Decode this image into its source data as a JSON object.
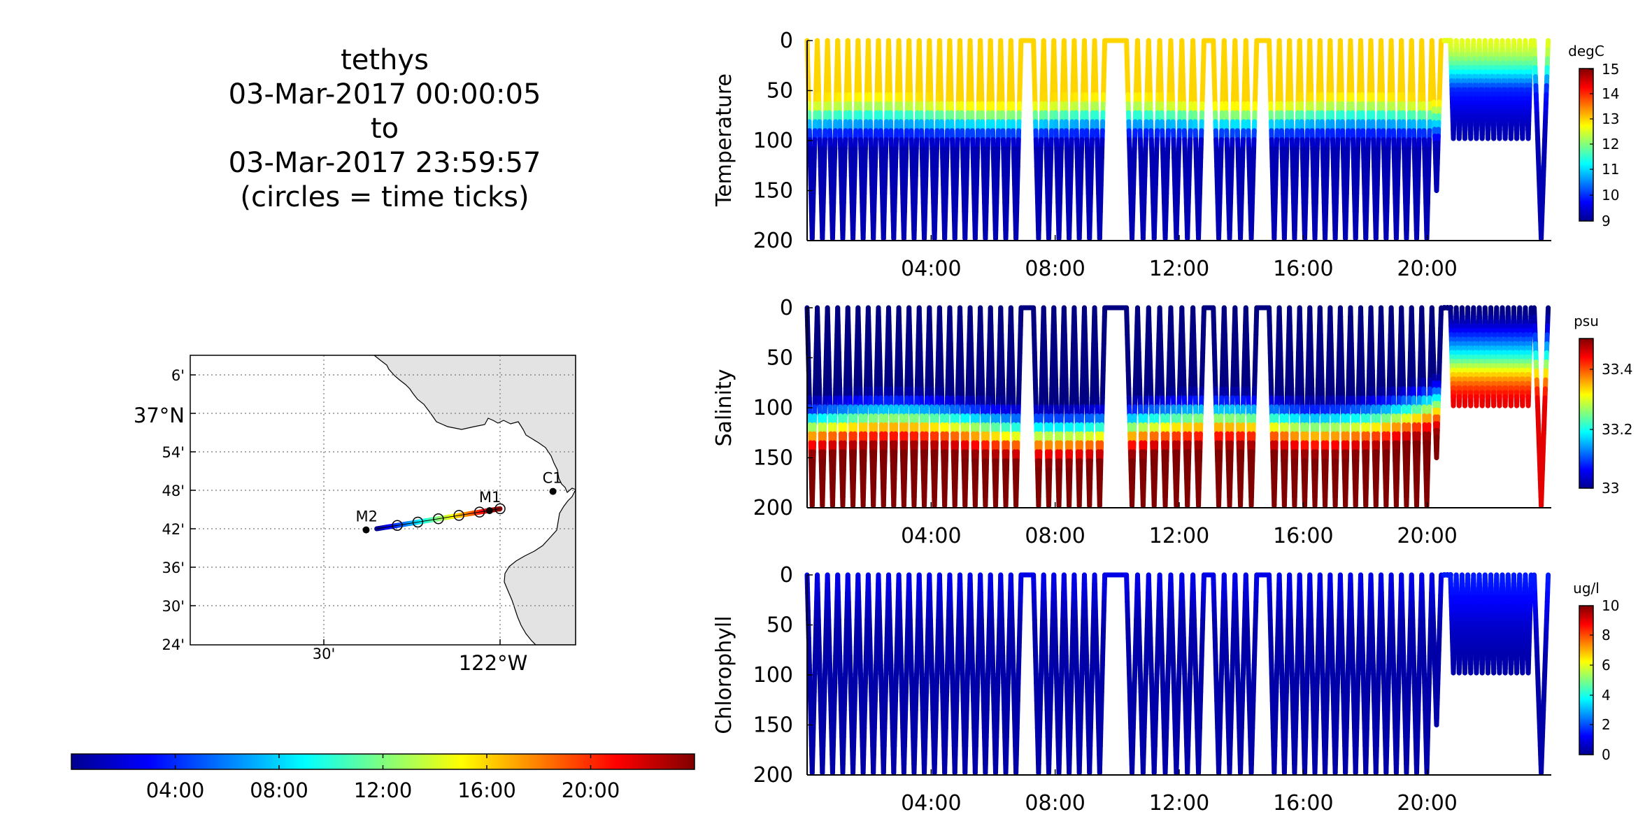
{
  "title": {
    "line1": "tethys",
    "line2": "03-Mar-2017 00:00:05",
    "line3": "to",
    "line4": "03-Mar-2017 23:59:57",
    "line5": "(circles = time ticks)"
  },
  "map": {
    "lat_labels": [
      "6'",
      "37°N",
      "54'",
      "48'",
      "42'",
      "36'",
      "30'",
      "24'"
    ],
    "lon_labels": [
      "30'",
      "122°W"
    ],
    "stations": [
      {
        "name": "M2",
        "lon": -122.38,
        "lat": 36.697
      },
      {
        "name": "M1",
        "lon": -122.03,
        "lat": 36.747
      },
      {
        "name": "C1",
        "lon": -121.85,
        "lat": 36.797
      }
    ],
    "track": {
      "start": [
        -122.35,
        36.7
      ],
      "end": [
        -122.0,
        36.752
      ]
    },
    "time_ticks_hours": [
      4,
      8,
      12,
      16,
      20,
      24
    ]
  },
  "time_colorbar": {
    "ticks": [
      "04:00",
      "08:00",
      "12:00",
      "16:00",
      "20:00"
    ]
  },
  "chart_data": [
    {
      "type": "scatter",
      "name": "temperature-section",
      "ylabel": "Temperature",
      "x_ticks": [
        "04:00",
        "08:00",
        "12:00",
        "16:00",
        "20:00"
      ],
      "y_ticks": [
        "0",
        "50",
        "100",
        "150",
        "200"
      ],
      "xlim_hours": [
        0,
        24
      ],
      "ylim": [
        200,
        0
      ],
      "colorbar": {
        "unit": "degC",
        "ticks": [
          "15",
          "14",
          "13",
          "12",
          "11",
          "10",
          "9"
        ],
        "range": [
          9,
          15
        ]
      },
      "profile": {
        "mixed_layer_value": 13.0,
        "deep_value": 9.3,
        "gradient_top_m": 55,
        "gradient_bottom_m": 110
      },
      "late_profile": {
        "mixed_layer_value": 12.6,
        "mid_value": 10.0,
        "bottom_value": 9.3
      }
    },
    {
      "type": "scatter",
      "name": "salinity-section",
      "ylabel": "Salinity",
      "x_ticks": [
        "04:00",
        "08:00",
        "12:00",
        "16:00",
        "20:00"
      ],
      "y_ticks": [
        "0",
        "50",
        "100",
        "150",
        "200"
      ],
      "xlim_hours": [
        0,
        24
      ],
      "ylim": [
        200,
        0
      ],
      "colorbar": {
        "unit": "psu",
        "ticks": [
          "33.4",
          "33.2",
          "33"
        ],
        "range": [
          33.0,
          33.5
        ]
      },
      "profile": {
        "surface_value": 33.0,
        "deep_value": 33.5,
        "halocline_m": 125
      },
      "late_profile": {
        "surface_value": 33.0,
        "mid_value": 33.2,
        "bottom_value": 33.45
      }
    },
    {
      "type": "scatter",
      "name": "chlorophyll-section",
      "ylabel": "Chlorophyll",
      "x_ticks": [
        "04:00",
        "08:00",
        "12:00",
        "16:00",
        "20:00"
      ],
      "y_ticks": [
        "0",
        "50",
        "100",
        "150",
        "200"
      ],
      "xlim_hours": [
        0,
        24
      ],
      "ylim": [
        200,
        0
      ],
      "colorbar": {
        "unit": "ug/l",
        "ticks": [
          "10",
          "8",
          "6",
          "4",
          "2",
          "0"
        ],
        "range": [
          0,
          10
        ]
      },
      "profile": {
        "surface_value": 1.0,
        "deep_value": 0.4
      },
      "late_profile": {
        "surface_value": 1.5,
        "mid_value": 0.8,
        "bottom_value": 0.4
      }
    }
  ],
  "colors": {
    "land": "#e3e3e3",
    "grid": "#777777",
    "axis": "#000000"
  }
}
